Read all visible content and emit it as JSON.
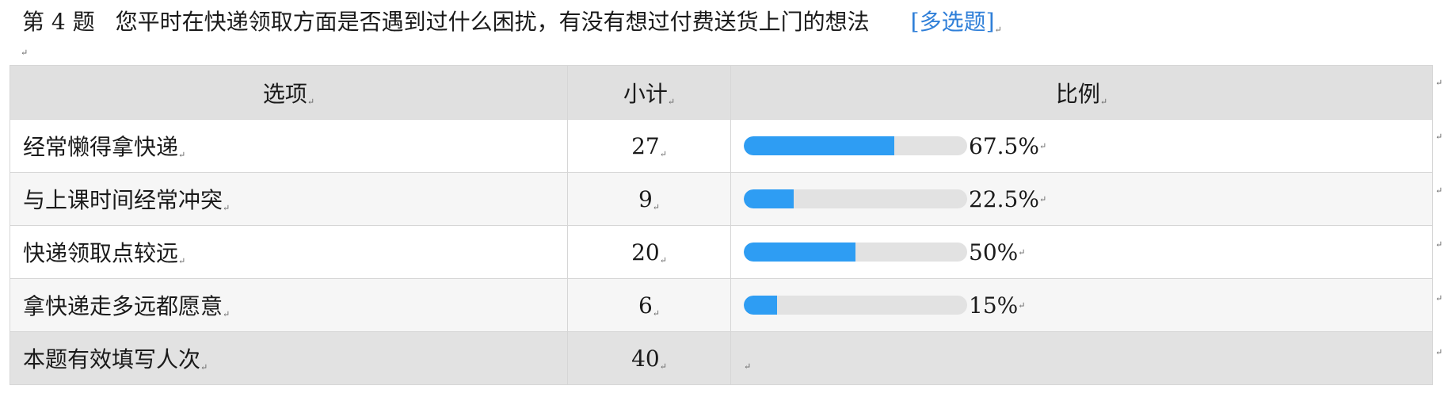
{
  "question": {
    "number": "第 4 题",
    "text": "您平时在快递领取方面是否遇到过什么困扰，有没有想过付费送货上门的想法",
    "type": "[多选题]"
  },
  "table": {
    "headers": {
      "option": "选项",
      "count": "小计",
      "ratio": "比例"
    },
    "rows": [
      {
        "option": "经常懒得拿快递",
        "count": "27",
        "percent": "67.5%",
        "fraction": 0.675
      },
      {
        "option": "与上课时间经常冲突",
        "count": "9",
        "percent": "22.5%",
        "fraction": 0.225
      },
      {
        "option": "快递领取点较远",
        "count": "20",
        "percent": "50%",
        "fraction": 0.5
      },
      {
        "option": "拿快递走多远都愿意",
        "count": "6",
        "percent": "15%",
        "fraction": 0.15
      }
    ],
    "total": {
      "label": "本题有效填写人次",
      "count": "40"
    }
  },
  "colors": {
    "bar_fill": "#2e9df3",
    "bar_track": "#e2e2e2",
    "header_bg": "#e0e0e0",
    "tag_blue": "#2f7fd8"
  },
  "marks": {
    "return": "↵"
  }
}
